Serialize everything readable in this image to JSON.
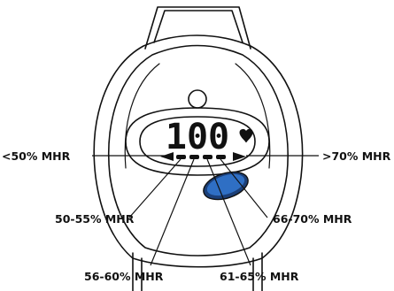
{
  "display": {
    "value": "100"
  },
  "icons": {
    "heart": "heart-icon",
    "button": "blue-oval-button",
    "sensor": "round-sensor"
  },
  "colors": {
    "button_fill": "#2f6fc4",
    "button_rim": "#1b3f78",
    "ink": "#111111"
  },
  "zones": {
    "left_edge": "<50% MHR",
    "right_edge": ">70% MHR",
    "z1": "50-55% MHR",
    "z2": "56-60% MHR",
    "z3": "61-65% MHR",
    "z4": "66-70% MHR"
  }
}
